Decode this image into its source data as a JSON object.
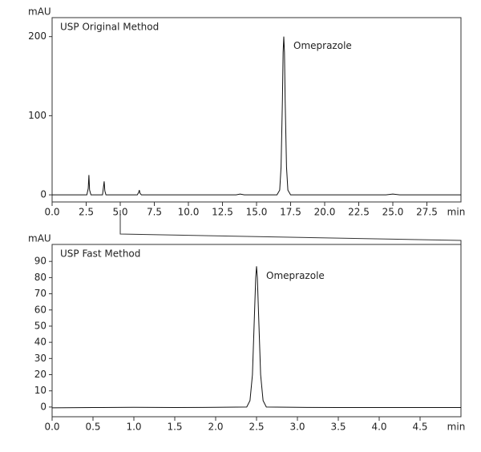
{
  "chart_data": [
    {
      "type": "line",
      "ylabel": "mAU",
      "xlabel": "min",
      "annotations": [
        "USP Original Method",
        "Omeprazole"
      ],
      "x": [
        0,
        2.55,
        2.65,
        2.7,
        2.75,
        2.85,
        3.7,
        3.77,
        3.82,
        3.87,
        3.95,
        6.25,
        6.35,
        6.4,
        6.45,
        6.55,
        13.5,
        13.8,
        14.1,
        16.5,
        16.7,
        16.8,
        16.9,
        16.95,
        17.0,
        17.05,
        17.1,
        17.2,
        17.3,
        17.5,
        24.5,
        25.0,
        25.5,
        30
      ],
      "values": [
        0,
        0,
        8,
        25,
        6,
        0,
        0,
        10,
        17,
        5,
        0,
        0,
        3,
        6,
        2,
        0,
        0,
        1,
        0,
        0,
        6,
        35,
        120,
        180,
        200,
        180,
        120,
        35,
        6,
        0,
        0,
        1,
        0,
        0
      ],
      "color": "#111111",
      "xlim": [
        0,
        30
      ],
      "xticks": [
        {
          "value": 0,
          "label": "0.0"
        },
        2.5,
        {
          "value": 5,
          "label": "5.0"
        },
        7.5,
        {
          "value": 10,
          "label": "10.0"
        },
        12.5,
        {
          "value": 15,
          "label": "15.0"
        },
        17.5,
        {
          "value": 20,
          "label": "20.0"
        },
        22.5,
        {
          "value": 25,
          "label": "25.0"
        },
        27.5
      ],
      "ylim": [
        -9,
        224
      ],
      "yticks": [
        0,
        100,
        200
      ]
    },
    {
      "type": "line",
      "ylabel": "mAU",
      "xlabel": "min",
      "annotations": [
        "USP Fast Method",
        "Omeprazole"
      ],
      "x": [
        0,
        0.5,
        1.0,
        1.5,
        2.0,
        2.38,
        2.42,
        2.45,
        2.47,
        2.49,
        2.5,
        2.51,
        2.53,
        2.55,
        2.58,
        2.62,
        3.0,
        3.5,
        4.0,
        4.5,
        5.0
      ],
      "values": [
        -0.5,
        -0.3,
        -0.2,
        -0.3,
        -0.2,
        0,
        4,
        20,
        50,
        80,
        87,
        80,
        50,
        20,
        4,
        0,
        -0.2,
        -0.3,
        -0.3,
        -0.3,
        -0.3
      ],
      "color": "#111111",
      "xlim": [
        0,
        5
      ],
      "xticks": [
        {
          "value": 0,
          "label": "0.0"
        },
        0.5,
        {
          "value": 1,
          "label": "1.0"
        },
        1.5,
        {
          "value": 2,
          "label": "2.0"
        },
        2.5,
        {
          "value": 3,
          "label": "3.0"
        },
        3.5,
        {
          "value": 4,
          "label": "4.0"
        },
        4.5
      ],
      "ylim": [
        -6,
        100.5
      ],
      "yticks": [
        0,
        10,
        20,
        30,
        40,
        50,
        60,
        70,
        80,
        90
      ]
    }
  ]
}
